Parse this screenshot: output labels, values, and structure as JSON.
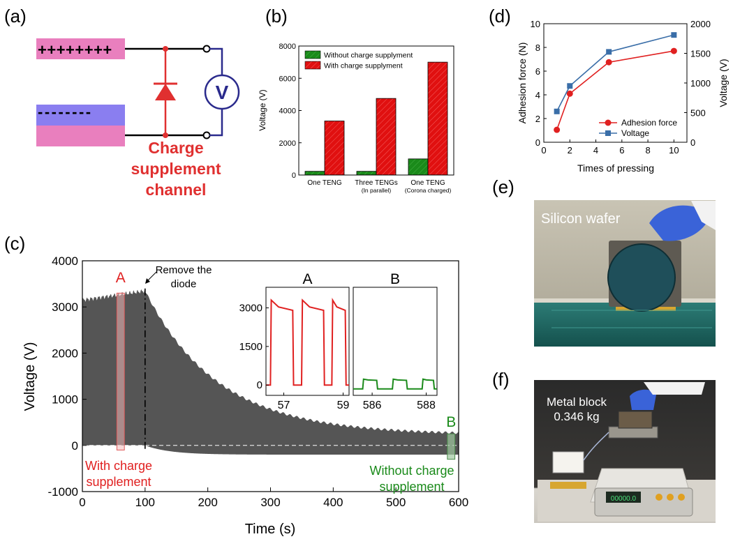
{
  "panel_labels": {
    "a": "(a)",
    "b": "(b)",
    "c": "(c)",
    "d": "(d)",
    "e": "(e)",
    "f": "(f)"
  },
  "panel_a": {
    "plus_signs": "++++++++",
    "minus_signs": "--------",
    "meter_label": "V",
    "caption_lines": [
      "Charge",
      "supplement",
      "channel"
    ],
    "colors": {
      "pink": "#e97fbe",
      "blue": "#8a7ef0",
      "red": "#e03030",
      "navy": "#2a2a8c"
    }
  },
  "panel_e": {
    "label": "Silicon wafer"
  },
  "panel_f": {
    "label_lines": [
      "Metal block",
      "0.346 kg"
    ],
    "scale_display": "00000.0"
  },
  "chart_data": [
    {
      "id": "b",
      "type": "bar",
      "ylabel": "Voltage (V)",
      "ylim": [
        0,
        8000
      ],
      "yticks": [
        0,
        2000,
        4000,
        6000,
        8000
      ],
      "categories": [
        [
          "One TENG"
        ],
        [
          "Three TENGs",
          "(In parallel)"
        ],
        [
          "One TENG",
          "(Corona charged)"
        ]
      ],
      "series": [
        {
          "name": "Without charge supplyment",
          "color": "#1a8a1a",
          "values": [
            230,
            230,
            1000
          ]
        },
        {
          "name": "With charge supplyment",
          "color": "#e01010",
          "values": [
            3350,
            4750,
            7000
          ]
        }
      ],
      "legend_position": "top-left"
    },
    {
      "id": "c",
      "type": "area",
      "xlabel": "Time (s)",
      "ylabel": "Voltage (V)",
      "xlim": [
        0,
        600
      ],
      "ylim": [
        -1000,
        4000
      ],
      "xticks": [
        0,
        100,
        200,
        300,
        400,
        500,
        600
      ],
      "yticks": [
        -1000,
        0,
        1000,
        2000,
        3000,
        4000
      ],
      "envelope": {
        "charge_phase": {
          "t_start": 0,
          "t_end": 100,
          "vmax_start": 3150,
          "vmax_end": 3350,
          "vmin": 0
        },
        "decay_phase": {
          "t_start": 100,
          "t_end": 600,
          "vmax_start": 3350,
          "vmax_end": 230,
          "vmin_start": 0,
          "vmin_end": -200
        },
        "color": "#555555"
      },
      "annotations": {
        "diode": {
          "text_lines": [
            "Remove the",
            "diode"
          ],
          "t": 100
        },
        "region_a": {
          "label": "A",
          "t_from": 55,
          "t_to": 67,
          "caption_lines": [
            "With charge",
            "supplement"
          ],
          "color": "#e02020"
        },
        "region_b": {
          "label": "B",
          "t_from": 582,
          "t_to": 594,
          "caption_lines": [
            "Without charge",
            "supplement"
          ],
          "color": "#1a8a1a"
        }
      },
      "inset_a": {
        "title": "A",
        "xlim": [
          56.4,
          59.2
        ],
        "ylim": [
          -400,
          3800
        ],
        "xticks": [
          57,
          59
        ],
        "yticks": [
          0,
          1500,
          3000
        ],
        "pulse_peak": 3300,
        "pulse_base": 0,
        "pulses_t": [
          [
            56.55,
            57.33
          ],
          [
            57.6,
            58.37
          ],
          [
            58.62,
            59.1
          ]
        ],
        "color": "#e02020"
      },
      "inset_b": {
        "title": "B",
        "xlim": [
          585.3,
          588.4
        ],
        "ylim": [
          -400,
          3800
        ],
        "xticks": [
          586,
          588
        ],
        "pulse_peak": 230,
        "pulse_base": -150,
        "pulses_t": [
          [
            585.65,
            586.2
          ],
          [
            586.75,
            587.3
          ],
          [
            587.85,
            588.3
          ]
        ],
        "color": "#1a8a1a"
      }
    },
    {
      "id": "d",
      "type": "line",
      "xlabel": "Times of pressing",
      "ylabel": "Adhesion force (N)",
      "y2label": "Voltage (V)",
      "xlim": [
        0,
        11
      ],
      "ylim": [
        0,
        10
      ],
      "y2lim": [
        0,
        2000
      ],
      "xticks": [
        0,
        2,
        4,
        6,
        8,
        10
      ],
      "yticks": [
        0,
        2,
        4,
        6,
        8,
        10
      ],
      "y2ticks": [
        0,
        500,
        1000,
        1500,
        2000
      ],
      "x": [
        1,
        2,
        5,
        10
      ],
      "series": [
        {
          "name": "Adhesion force",
          "axis": "left",
          "values": [
            1.05,
            4.1,
            6.75,
            7.7
          ],
          "color": "#e02020",
          "marker": "circle"
        },
        {
          "name": "Voltage",
          "axis": "right",
          "values": [
            520,
            950,
            1525,
            1810
          ],
          "color": "#3a6ea8",
          "marker": "square"
        }
      ],
      "legend_position": "bottom-right"
    }
  ]
}
